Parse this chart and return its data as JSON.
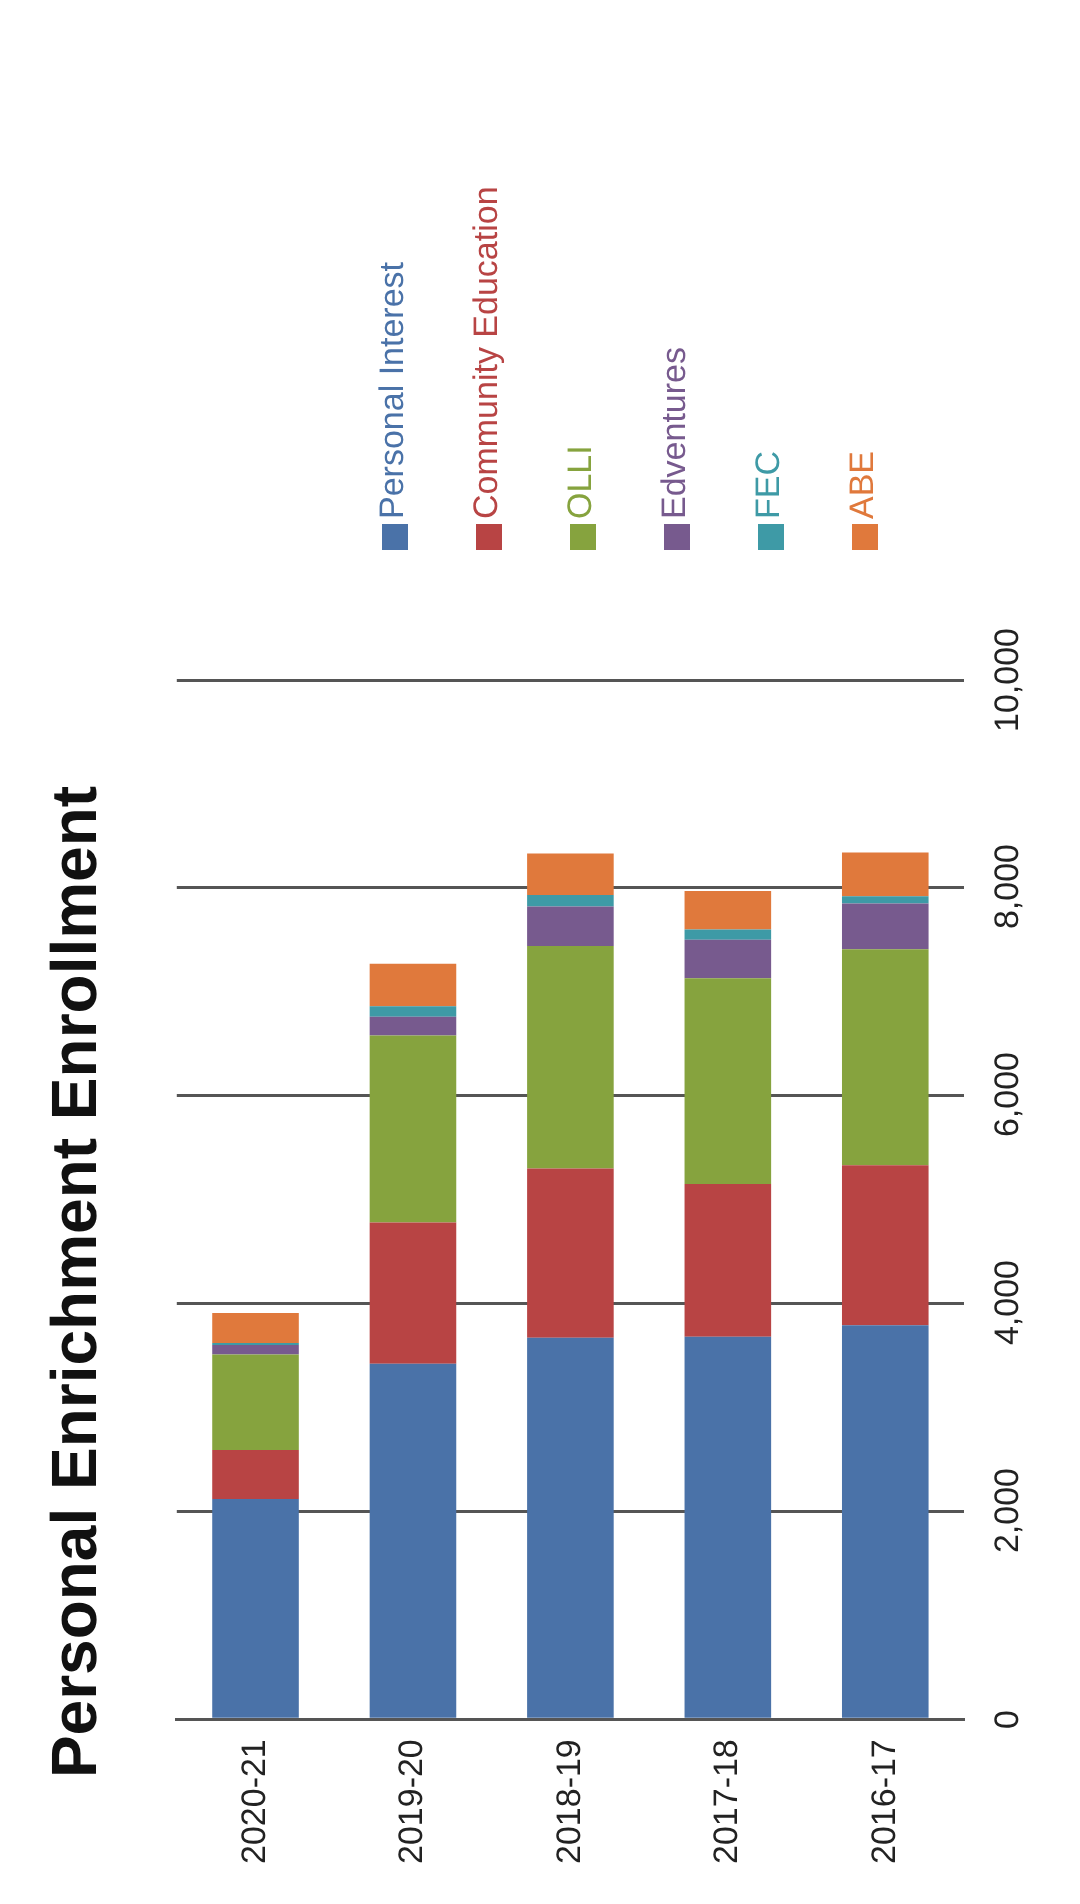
{
  "chart_data": {
    "type": "bar",
    "stacked": true,
    "title": "Personal Enrichment Enrollment",
    "categories": [
      "2020-21",
      "2019-20",
      "2018-19",
      "2017-18",
      "2016-17"
    ],
    "series": [
      {
        "name": "Personal Interest",
        "color": "#4a72a8",
        "values": [
          2120,
          3420,
          3670,
          3680,
          3790
        ]
      },
      {
        "name": "Community Education",
        "color": "#b84444",
        "values": [
          470,
          1360,
          1630,
          1470,
          1540
        ]
      },
      {
        "name": "OLLI",
        "color": "#86a33e",
        "values": [
          920,
          1800,
          2140,
          1980,
          2080
        ]
      },
      {
        "name": "Edventures",
        "color": "#775a8e",
        "values": [
          90,
          180,
          380,
          370,
          440
        ]
      },
      {
        "name": "FEC",
        "color": "#3e9aa6",
        "values": [
          20,
          100,
          110,
          100,
          70
        ]
      },
      {
        "name": "ABE",
        "color": "#e0793c",
        "values": [
          290,
          410,
          400,
          370,
          420
        ]
      }
    ],
    "ylim": [
      0,
      10000
    ],
    "yticks": [
      0,
      {
        "value": 2000,
        "label": "2,000"
      },
      {
        "value": 4000,
        "label": "4,000"
      },
      {
        "value": 6000,
        "label": "6,000"
      },
      {
        "value": 8000,
        "label": "8,000"
      },
      {
        "value": 10000,
        "label": "10,000"
      }
    ],
    "grid": "y",
    "legend": "top"
  }
}
